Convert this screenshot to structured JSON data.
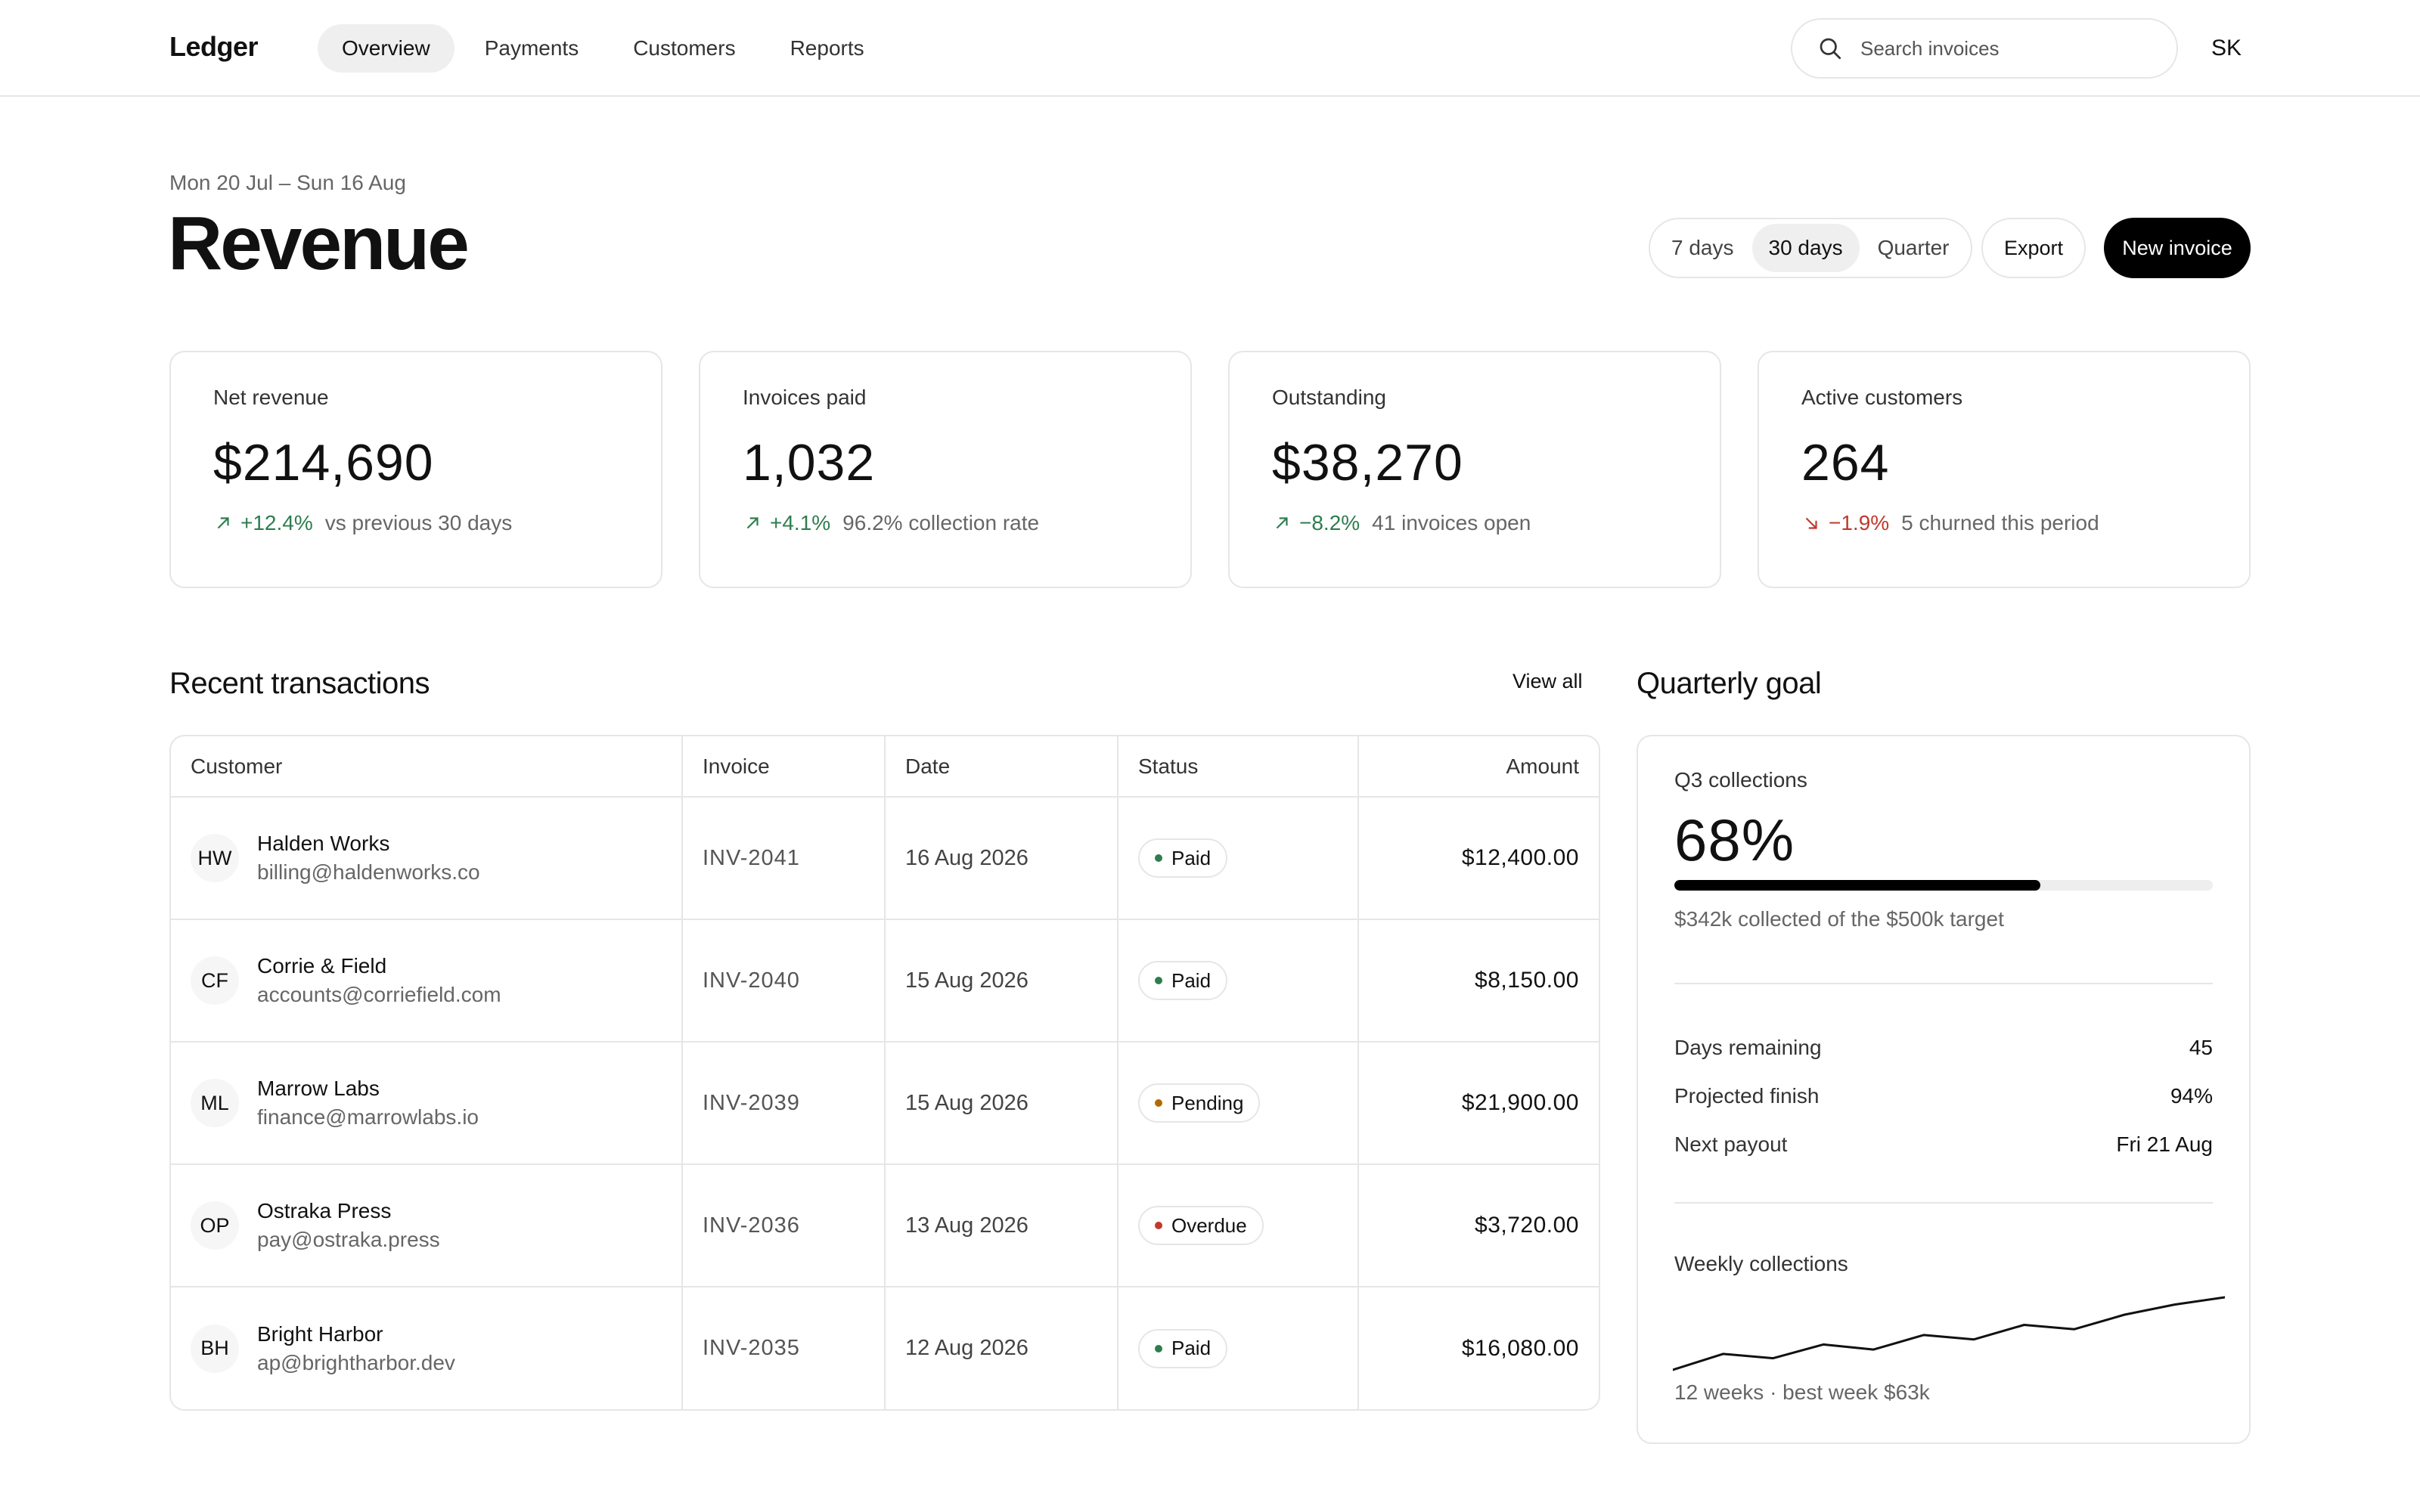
{
  "app": {
    "brand": "Ledger"
  },
  "nav": {
    "tabs": [
      "Overview",
      "Payments",
      "Customers",
      "Reports"
    ],
    "active": "Overview"
  },
  "search": {
    "placeholder": "Search invoices",
    "icon": "search-icon"
  },
  "user": {
    "initials": "SK"
  },
  "header": {
    "date_range": "Mon 20 Jul – Sun 16 Aug",
    "title": "Revenue",
    "ranges": [
      "7 days",
      "30 days",
      "Quarter"
    ],
    "active_range": "30 days",
    "export_label": "Export",
    "new_invoice_label": "New invoice"
  },
  "kpis": [
    {
      "label": "Net revenue",
      "value": "$214,690",
      "delta": "+12.4%",
      "direction": "up",
      "note": "vs previous 30 days"
    },
    {
      "label": "Invoices paid",
      "value": "1,032",
      "delta": "+4.1%",
      "direction": "up",
      "note": "96.2% collection rate"
    },
    {
      "label": "Outstanding",
      "value": "$38,270",
      "delta": "−8.2%",
      "direction": "up",
      "note": "41 invoices open"
    },
    {
      "label": "Active customers",
      "value": "264",
      "delta": "−1.9%",
      "direction": "down",
      "note": "5 churned this period"
    }
  ],
  "transactions": {
    "title": "Recent transactions",
    "view_all": "View all",
    "columns": [
      "Customer",
      "Invoice",
      "Date",
      "Status",
      "Amount"
    ],
    "rows": [
      {
        "initials": "HW",
        "name": "Halden Works",
        "email": "billing@haldenworks.co",
        "invoice": "INV-2041",
        "date": "16 Aug 2026",
        "status": "Paid",
        "amount": "$12,400.00"
      },
      {
        "initials": "CF",
        "name": "Corrie & Field",
        "email": "accounts@corriefield.com",
        "invoice": "INV-2040",
        "date": "15 Aug 2026",
        "status": "Paid",
        "amount": "$8,150.00"
      },
      {
        "initials": "ML",
        "name": "Marrow Labs",
        "email": "finance@marrowlabs.io",
        "invoice": "INV-2039",
        "date": "15 Aug 2026",
        "status": "Pending",
        "amount": "$21,900.00"
      },
      {
        "initials": "OP",
        "name": "Ostraka Press",
        "email": "pay@ostraka.press",
        "invoice": "INV-2036",
        "date": "13 Aug 2026",
        "status": "Overdue",
        "amount": "$3,720.00"
      },
      {
        "initials": "BH",
        "name": "Bright Harbor",
        "email": "ap@brightharbor.dev",
        "invoice": "INV-2035",
        "date": "12 Aug 2026",
        "status": "Paid",
        "amount": "$16,080.00"
      }
    ]
  },
  "goal": {
    "title": "Quarterly goal",
    "label": "Q3 collections",
    "value": "68%",
    "progress": 0.68,
    "note": "$342k collected of the $500k target",
    "stats": [
      {
        "label": "Days remaining",
        "value": "45"
      },
      {
        "label": "Projected finish",
        "value": "94%"
      },
      {
        "label": "Next payout",
        "value": "Fri 21 Aug"
      }
    ],
    "weekly_label": "Weekly collections",
    "weekly_note": "12 weeks · best week $63k",
    "weekly_trend": [
      0.0,
      0.22,
      0.16,
      0.35,
      0.28,
      0.48,
      0.42,
      0.62,
      0.56,
      0.76,
      0.9,
      1.0
    ]
  },
  "colors": {
    "up": "#2e7d4f",
    "down": "#c0392b",
    "status": {
      "Paid": "#2e7d4f",
      "Pending": "#b26a00",
      "Overdue": "#c0392b"
    }
  }
}
